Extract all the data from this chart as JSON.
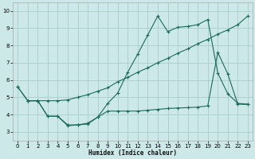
{
  "xlabel": "Humidex (Indice chaleur)",
  "bg_color": "#cce8e8",
  "grid_color": "#aacccc",
  "line_color": "#1a6b5a",
  "xlim": [
    -0.5,
    23.5
  ],
  "ylim": [
    2.5,
    10.5
  ],
  "xticks": [
    0,
    1,
    2,
    3,
    4,
    5,
    6,
    7,
    8,
    9,
    10,
    11,
    12,
    13,
    14,
    15,
    16,
    17,
    18,
    19,
    20,
    21,
    22,
    23
  ],
  "yticks": [
    3,
    4,
    5,
    6,
    7,
    8,
    9,
    10
  ],
  "line1_x": [
    0,
    1,
    2,
    3,
    4,
    5,
    6,
    7,
    8,
    9,
    10,
    11,
    12,
    13,
    14,
    15,
    16,
    17,
    18,
    19,
    20,
    21,
    22,
    23
  ],
  "line1_y": [
    5.6,
    4.8,
    4.8,
    4.8,
    4.8,
    4.85,
    5.0,
    5.15,
    5.35,
    5.55,
    5.9,
    6.15,
    6.45,
    6.7,
    7.0,
    7.25,
    7.55,
    7.8,
    8.1,
    8.35,
    8.65,
    8.9,
    9.2,
    9.7
  ],
  "line2_x": [
    0,
    1,
    2,
    3,
    4,
    5,
    6,
    7,
    8,
    9,
    10,
    11,
    12,
    13,
    14,
    15,
    16,
    17,
    18,
    19,
    20,
    21,
    22,
    23
  ],
  "line2_y": [
    5.6,
    4.8,
    4.8,
    3.9,
    3.9,
    3.4,
    3.4,
    3.5,
    3.85,
    4.65,
    5.25,
    6.45,
    7.5,
    8.6,
    9.7,
    8.8,
    9.05,
    9.1,
    9.2,
    9.5,
    6.4,
    5.2,
    4.65,
    4.6
  ],
  "line3_x": [
    1,
    2,
    3,
    4,
    5,
    6,
    7,
    8,
    9,
    10,
    11,
    12,
    13,
    14,
    15,
    16,
    17,
    18,
    19,
    20,
    21,
    22,
    23
  ],
  "line3_y": [
    4.8,
    4.8,
    3.9,
    3.9,
    3.35,
    3.4,
    3.45,
    3.85,
    4.2,
    4.2,
    4.2,
    4.2,
    4.25,
    4.3,
    4.35,
    4.38,
    4.4,
    4.43,
    4.5,
    7.6,
    6.35,
    4.6,
    4.58
  ]
}
